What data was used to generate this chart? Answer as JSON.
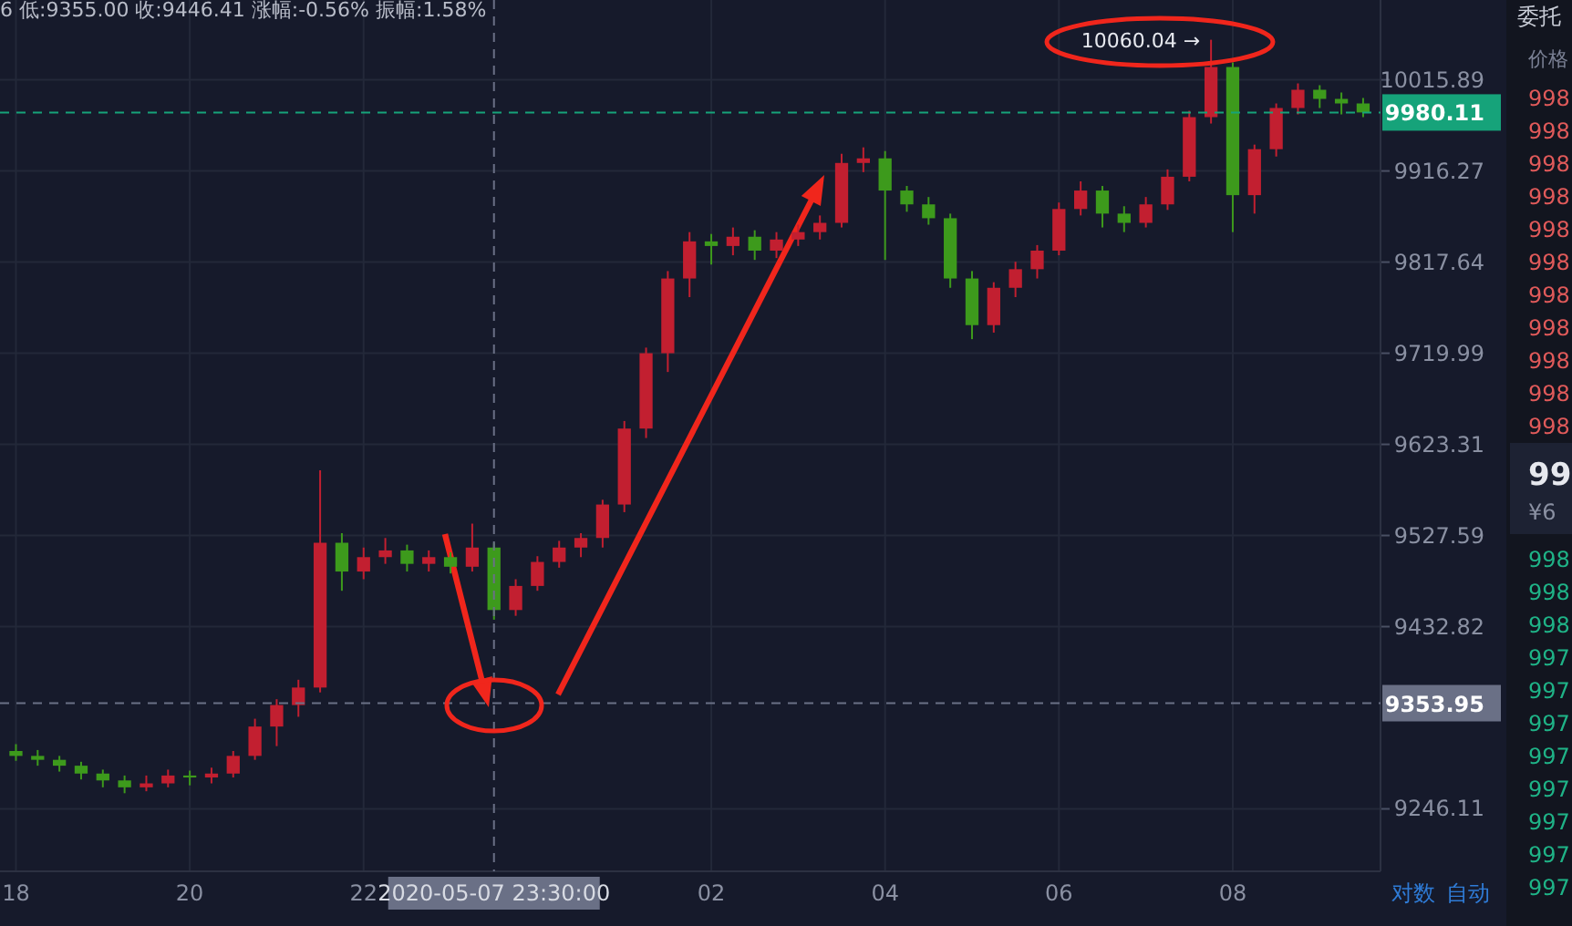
{
  "chart_data": [
    {
      "type": "candlestick",
      "log": true,
      "grid": true,
      "x": [
        "2020-05-07T18:00",
        "2020-05-07T18:15",
        "2020-05-07T18:30",
        "2020-05-07T18:45",
        "2020-05-07T19:00",
        "2020-05-07T19:15",
        "2020-05-07T19:30",
        "2020-05-07T19:45",
        "2020-05-07T20:00",
        "2020-05-07T20:15",
        "2020-05-07T20:30",
        "2020-05-07T20:45",
        "2020-05-07T21:00",
        "2020-05-07T21:15",
        "2020-05-07T21:30",
        "2020-05-07T21:45",
        "2020-05-07T22:00",
        "2020-05-07T22:15",
        "2020-05-07T22:30",
        "2020-05-07T22:45",
        "2020-05-07T23:00",
        "2020-05-07T23:15",
        "2020-05-07T23:30",
        "2020-05-07T23:45",
        "2020-05-08T00:00",
        "2020-05-08T00:15",
        "2020-05-08T00:30",
        "2020-05-08T00:45",
        "2020-05-08T01:00",
        "2020-05-08T01:15",
        "2020-05-08T01:30",
        "2020-05-08T01:45",
        "2020-05-08T02:00",
        "2020-05-08T02:15",
        "2020-05-08T02:30",
        "2020-05-08T02:45",
        "2020-05-08T03:00",
        "2020-05-08T03:15",
        "2020-05-08T03:30",
        "2020-05-08T03:45",
        "2020-05-08T04:00",
        "2020-05-08T04:15",
        "2020-05-08T04:30",
        "2020-05-08T04:45",
        "2020-05-08T05:00",
        "2020-05-08T05:15",
        "2020-05-08T05:30",
        "2020-05-08T05:45",
        "2020-05-08T06:00",
        "2020-05-08T06:15",
        "2020-05-08T06:30",
        "2020-05-08T06:45",
        "2020-05-08T07:00",
        "2020-05-08T07:15",
        "2020-05-08T07:30",
        "2020-05-08T07:45",
        "2020-05-08T08:00",
        "2020-05-08T08:15",
        "2020-05-08T08:30",
        "2020-05-08T08:45",
        "2020-05-08T09:00",
        "2020-05-08T09:15",
        "2020-05-08T09:30"
      ],
      "ohlc": [
        [
          9305,
          9312,
          9295,
          9300
        ],
        [
          9300,
          9306,
          9290,
          9296
        ],
        [
          9296,
          9300,
          9284,
          9290
        ],
        [
          9290,
          9294,
          9276,
          9282
        ],
        [
          9282,
          9286,
          9268,
          9275
        ],
        [
          9275,
          9280,
          9262,
          9268
        ],
        [
          9268,
          9280,
          9264,
          9272
        ],
        [
          9272,
          9286,
          9268,
          9280
        ],
        [
          9280,
          9285,
          9270,
          9278
        ],
        [
          9278,
          9288,
          9272,
          9282
        ],
        [
          9282,
          9305,
          9278,
          9300
        ],
        [
          9300,
          9338,
          9296,
          9330
        ],
        [
          9330,
          9358,
          9310,
          9352
        ],
        [
          9352,
          9378,
          9340,
          9370
        ],
        [
          9370,
          9596,
          9365,
          9520
        ],
        [
          9520,
          9530,
          9470,
          9490
        ],
        [
          9490,
          9515,
          9482,
          9505
        ],
        [
          9505,
          9525,
          9498,
          9512
        ],
        [
          9512,
          9518,
          9490,
          9498
        ],
        [
          9498,
          9512,
          9490,
          9505
        ],
        [
          9505,
          9510,
          9488,
          9495
        ],
        [
          9495,
          9540,
          9490,
          9515
        ],
        [
          9515,
          9520,
          9440,
          9450
        ],
        [
          9450,
          9482,
          9444,
          9475
        ],
        [
          9475,
          9506,
          9470,
          9500
        ],
        [
          9500,
          9522,
          9494,
          9515
        ],
        [
          9515,
          9530,
          9505,
          9525
        ],
        [
          9525,
          9565,
          9515,
          9560
        ],
        [
          9560,
          9648,
          9552,
          9640
        ],
        [
          9640,
          9726,
          9630,
          9720
        ],
        [
          9720,
          9808,
          9700,
          9800
        ],
        [
          9800,
          9850,
          9780,
          9840
        ],
        [
          9840,
          9848,
          9815,
          9835
        ],
        [
          9835,
          9855,
          9825,
          9845
        ],
        [
          9845,
          9852,
          9820,
          9830
        ],
        [
          9830,
          9850,
          9822,
          9842
        ],
        [
          9842,
          9858,
          9835,
          9850
        ],
        [
          9850,
          9868,
          9842,
          9860
        ],
        [
          9860,
          9935,
          9855,
          9925
        ],
        [
          9925,
          9942,
          9915,
          9930
        ],
        [
          9930,
          9938,
          9820,
          9895
        ],
        [
          9895,
          9900,
          9872,
          9880
        ],
        [
          9880,
          9888,
          9858,
          9865
        ],
        [
          9865,
          9870,
          9790,
          9800
        ],
        [
          9800,
          9808,
          9735,
          9750
        ],
        [
          9750,
          9796,
          9742,
          9790
        ],
        [
          9790,
          9818,
          9780,
          9810
        ],
        [
          9810,
          9836,
          9800,
          9830
        ],
        [
          9830,
          9882,
          9825,
          9875
        ],
        [
          9875,
          9905,
          9868,
          9895
        ],
        [
          9895,
          9900,
          9855,
          9870
        ],
        [
          9870,
          9878,
          9850,
          9860
        ],
        [
          9860,
          9888,
          9855,
          9880
        ],
        [
          9880,
          9918,
          9874,
          9910
        ],
        [
          9910,
          9982,
          9905,
          9975
        ],
        [
          9975,
          10060.04,
          9968,
          10030
        ],
        [
          10030,
          10035,
          9850,
          9890
        ],
        [
          9890,
          9945,
          9870,
          9940
        ],
        [
          9940,
          9990,
          9932,
          9985
        ],
        [
          9985,
          10012,
          9978,
          10005
        ],
        [
          10005,
          10010,
          9985,
          9995
        ],
        [
          9995,
          10002,
          9978,
          9990
        ],
        [
          9990,
          9996,
          9975,
          9980.11
        ]
      ],
      "colors": [
        "#3d9a1c",
        "#3d9a1c",
        "#3d9a1c",
        "#3d9a1c",
        "#3d9a1c",
        "#3d9a1c",
        "#c21f30",
        "#c21f30",
        "#3d9a1c",
        "#c21f30",
        "#c21f30",
        "#c21f30",
        "#c21f30",
        "#c21f30",
        "#c21f30",
        "#3d9a1c",
        "#c21f30",
        "#c21f30",
        "#3d9a1c",
        "#c21f30",
        "#3d9a1c",
        "#c21f30",
        "#3d9a1c",
        "#c21f30",
        "#c21f30",
        "#c21f30",
        "#c21f30",
        "#c21f30",
        "#c21f30",
        "#c21f30",
        "#c21f30",
        "#c21f30",
        "#3d9a1c",
        "#c21f30",
        "#3d9a1c",
        "#c21f30",
        "#c21f30",
        "#c21f30",
        "#c21f30",
        "#c21f30",
        "#3d9a1c",
        "#3d9a1c",
        "#3d9a1c",
        "#3d9a1c",
        "#3d9a1c",
        "#c21f30",
        "#c21f30",
        "#c21f30",
        "#c21f30",
        "#c21f30",
        "#3d9a1c",
        "#3d9a1c",
        "#c21f30",
        "#c21f30",
        "#c21f30",
        "#c21f30",
        "#3d9a1c",
        "#c21f30",
        "#c21f30",
        "#c21f30",
        "#3d9a1c",
        "#3d9a1c",
        "#3d9a1c"
      ],
      "xlim": [
        "2020-05-07T17:49",
        "2020-05-08T09:42"
      ],
      "xticks": [
        {
          "value": "2020-05-07T18:00",
          "label": "18"
        },
        {
          "value": "2020-05-07T20:00",
          "label": "20"
        },
        {
          "value": "2020-05-07T22:00",
          "label": "22"
        },
        {
          "value": "2020-05-08T02:00",
          "label": "02"
        },
        {
          "value": "2020-05-08T04:00",
          "label": "04"
        },
        {
          "value": "2020-05-08T06:00",
          "label": "06"
        },
        {
          "value": "2020-05-08T08:00",
          "label": "08"
        }
      ],
      "ylim": [
        9183,
        10104
      ],
      "yticks": [
        9246.11,
        9432.82,
        9527.59,
        9623.31,
        9719.99,
        9817.64,
        9916.27,
        10015.89
      ],
      "ref_lines": [
        {
          "axis": "y",
          "value": 9980.11,
          "label": "9980.11",
          "color": "#16a37a",
          "line_style": "dashed"
        },
        {
          "axis": "y",
          "value": 9353.95,
          "label": "9353.95",
          "color": "#6a7086",
          "line_style": "dashed"
        },
        {
          "axis": "x",
          "value": "2020-05-07T23:30",
          "label": "2020-05-07 23:30:00",
          "color": "#6a7086",
          "line_style": "dashed"
        }
      ],
      "annotations": [
        "6 低:9355.00 收:9446.41 涨幅:-0.56% 振幅:1.58%",
        {
          "text": "10060.04 →",
          "x": "2020-05-08T07:45",
          "y": 10060.04
        },
        "对数",
        "自动"
      ]
    },
    {
      "type": "other",
      "title": "委托",
      "subtitle": "价格",
      "annotations": [
        "998",
        "998",
        "998",
        "998",
        "998",
        "998",
        "998",
        "998",
        "998",
        "998",
        "998",
        "99",
        "¥6",
        "998",
        "998",
        "998",
        "997",
        "997",
        "997",
        "997",
        "997",
        "997",
        "997",
        "997"
      ],
      "colors": [
        "#e05a5a",
        "#e05a5a",
        "#e05a5a",
        "#e05a5a",
        "#e05a5a",
        "#e05a5a",
        "#e05a5a",
        "#e05a5a",
        "#e05a5a",
        "#e05a5a",
        "#e05a5a",
        "#e6e8ee",
        "#8a90a2",
        "#1fb387",
        "#1fb387",
        "#1fb387",
        "#1fb387",
        "#1fb387",
        "#1fb387",
        "#1fb387",
        "#1fb387",
        "#1fb387",
        "#1fb387",
        "#1fb387"
      ]
    }
  ]
}
